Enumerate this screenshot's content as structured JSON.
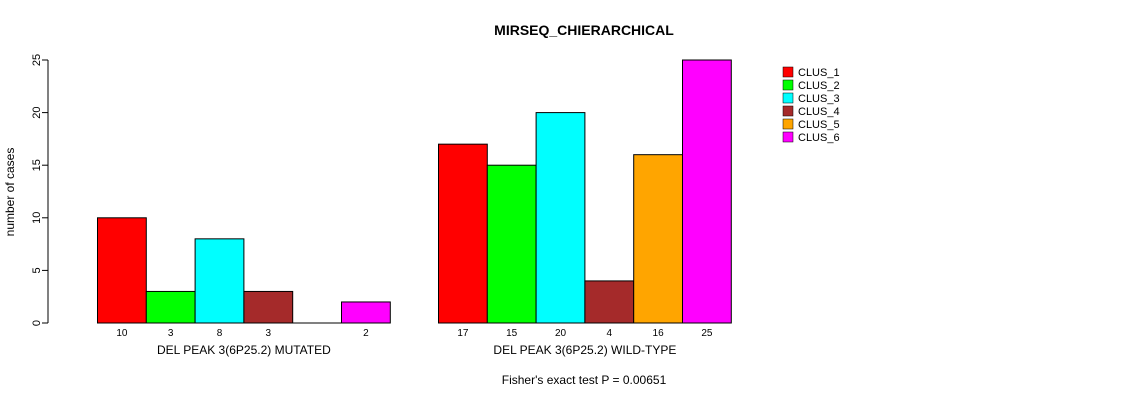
{
  "chart_data": {
    "type": "bar",
    "title": "MIRSEQ_CHIERARCHICAL",
    "ylabel": "number of cases",
    "xlabel": "",
    "ylim": [
      0,
      25
    ],
    "yticks": [
      0,
      5,
      10,
      15,
      20,
      25
    ],
    "categories": [
      "DEL PEAK  3(6P25.2) MUTATED",
      "DEL PEAK  3(6P25.2) WILD-TYPE"
    ],
    "series": [
      {
        "name": "CLUS_1",
        "color": "#ff0000",
        "values": [
          10,
          17
        ]
      },
      {
        "name": "CLUS_2",
        "color": "#00ff00",
        "values": [
          3,
          15
        ]
      },
      {
        "name": "CLUS_3",
        "color": "#00ffff",
        "values": [
          8,
          20
        ]
      },
      {
        "name": "CLUS_4",
        "color": "#a52a2a",
        "values": [
          3,
          4
        ]
      },
      {
        "name": "CLUS_5",
        "color": "#ffa500",
        "values": [
          0,
          16
        ]
      },
      {
        "name": "CLUS_6",
        "color": "#ff00ff",
        "values": [
          2,
          25
        ]
      }
    ],
    "bar_value_labels": [
      [
        "10",
        "3",
        "8",
        "3",
        "",
        "2"
      ],
      [
        "17",
        "15",
        "20",
        "4",
        "16",
        "25"
      ]
    ],
    "legend_position": "top-right",
    "footnote": "Fisher's exact test P = 0.00651"
  }
}
